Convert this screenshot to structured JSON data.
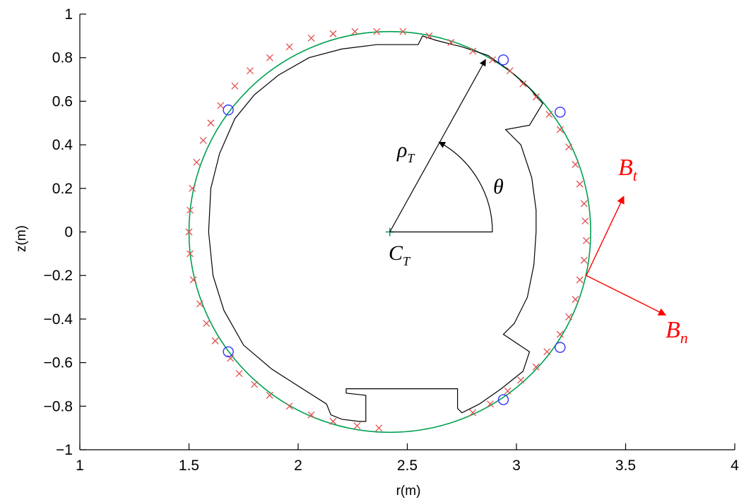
{
  "chart_data": {
    "type": "line",
    "xlabel": "r(m)",
    "ylabel": "z(m)",
    "xlim": [
      1,
      4
    ],
    "ylim": [
      -1,
      1
    ],
    "x_ticks": [
      "1",
      "1.5",
      "2",
      "2.5",
      "3",
      "3.5",
      "4"
    ],
    "y_ticks": [
      "1",
      "0.8",
      "0.6",
      "0.4",
      "0.2",
      "0",
      "−0.2",
      "−0.4",
      "−0.6",
      "−0.8",
      "−1"
    ],
    "grid": false,
    "colors": {
      "boundary": "#00a050",
      "wall": "#000000",
      "probe_cross": "#e05050",
      "sensor_circle": "#3333ff",
      "vector": "#ff0000",
      "annotation_arrow": "#000000"
    },
    "series": [
      {
        "kind": "circle",
        "center": [
          2.42,
          0
        ],
        "radius": 0.92
      },
      {
        "kind": "polyline",
        "points": [
          [
            1.59,
            0
          ],
          [
            1.6,
            0.2
          ],
          [
            1.64,
            0.36
          ],
          [
            1.71,
            0.52
          ],
          [
            1.8,
            0.63
          ],
          [
            1.91,
            0.72
          ],
          [
            2.05,
            0.8
          ],
          [
            2.2,
            0.84
          ],
          [
            2.36,
            0.86
          ],
          [
            2.5,
            0.86
          ],
          [
            2.55,
            0.86
          ],
          [
            2.57,
            0.9
          ],
          [
            2.63,
            0.88
          ],
          [
            2.75,
            0.85
          ],
          [
            2.87,
            0.81
          ],
          [
            2.97,
            0.74
          ],
          [
            3.06,
            0.66
          ],
          [
            3.12,
            0.59
          ],
          [
            3.06,
            0.49
          ],
          [
            2.95,
            0.47
          ],
          [
            3.02,
            0.4
          ],
          [
            3.07,
            0.25
          ],
          [
            3.09,
            0.1
          ],
          [
            3.09,
            0
          ],
          [
            3.08,
            -0.15
          ],
          [
            3.05,
            -0.3
          ],
          [
            2.99,
            -0.42
          ],
          [
            2.94,
            -0.47
          ],
          [
            3.06,
            -0.55
          ],
          [
            3.03,
            -0.64
          ],
          [
            2.93,
            -0.72
          ],
          [
            2.83,
            -0.79
          ],
          [
            2.75,
            -0.83
          ],
          [
            2.73,
            -0.81
          ],
          [
            2.73,
            -0.72
          ],
          [
            2.5,
            -0.72
          ],
          [
            2.22,
            -0.72
          ],
          [
            2.22,
            -0.74
          ],
          [
            2.31,
            -0.75
          ],
          [
            2.31,
            -0.87
          ],
          [
            2.28,
            -0.87
          ],
          [
            2.2,
            -0.86
          ],
          [
            2.15,
            -0.84
          ],
          [
            2.13,
            -0.79
          ],
          [
            2.02,
            -0.72
          ],
          [
            1.88,
            -0.63
          ],
          [
            1.75,
            -0.52
          ],
          [
            1.66,
            -0.36
          ],
          [
            1.61,
            -0.2
          ],
          [
            1.59,
            0
          ]
        ]
      },
      {
        "kind": "markers-x",
        "points": [
          [
            1.5,
            0
          ],
          [
            1.505,
            0.1
          ],
          [
            1.515,
            0.2
          ],
          [
            1.535,
            0.32
          ],
          [
            1.565,
            0.42
          ],
          [
            1.6,
            0.5
          ],
          [
            1.645,
            0.58
          ],
          [
            1.71,
            0.67
          ],
          [
            1.78,
            0.74
          ],
          [
            1.87,
            0.8
          ],
          [
            1.96,
            0.85
          ],
          [
            2.06,
            0.89
          ],
          [
            2.16,
            0.91
          ],
          [
            2.26,
            0.92
          ],
          [
            2.36,
            0.92
          ],
          [
            2.48,
            0.92
          ],
          [
            2.6,
            0.9
          ],
          [
            2.7,
            0.87
          ],
          [
            2.8,
            0.83
          ],
          [
            2.89,
            0.79
          ],
          [
            2.97,
            0.74
          ],
          [
            3.03,
            0.68
          ],
          [
            3.09,
            0.62
          ],
          [
            3.15,
            0.54
          ],
          [
            3.2,
            0.47
          ],
          [
            3.24,
            0.39
          ],
          [
            3.27,
            0.31
          ],
          [
            3.29,
            0.22
          ],
          [
            3.31,
            0.13
          ],
          [
            3.315,
            0.05
          ],
          [
            3.32,
            -0.04
          ],
          [
            3.31,
            -0.13
          ],
          [
            3.29,
            -0.22
          ],
          [
            3.27,
            -0.31
          ],
          [
            3.24,
            -0.39
          ],
          [
            3.2,
            -0.47
          ],
          [
            3.14,
            -0.55
          ],
          [
            3.09,
            -0.62
          ],
          [
            3.02,
            -0.68
          ],
          [
            2.96,
            -0.73
          ],
          [
            2.88,
            -0.79
          ],
          [
            2.8,
            -0.83
          ],
          [
            2.27,
            -0.89
          ],
          [
            2.37,
            -0.9
          ],
          [
            2.16,
            -0.87
          ],
          [
            2.06,
            -0.84
          ],
          [
            1.96,
            -0.8
          ],
          [
            1.87,
            -0.75
          ],
          [
            1.8,
            -0.7
          ],
          [
            1.73,
            -0.65
          ],
          [
            1.69,
            -0.58
          ],
          [
            1.62,
            -0.5
          ],
          [
            1.58,
            -0.42
          ],
          [
            1.55,
            -0.33
          ],
          [
            1.52,
            -0.22
          ],
          [
            1.505,
            -0.1
          ]
        ]
      },
      {
        "kind": "markers-o",
        "points": [
          [
            1.68,
            0.56
          ],
          [
            2.94,
            0.79
          ],
          [
            3.2,
            0.55
          ],
          [
            3.2,
            -0.53
          ],
          [
            2.94,
            -0.77
          ],
          [
            1.68,
            -0.55
          ]
        ]
      }
    ],
    "annotations": {
      "radius_label": "ρ",
      "radius_subscript": "T",
      "angle_label": "θ",
      "center_label": "C",
      "center_subscript": "T",
      "bt_label": "B",
      "bt_subscript": "t",
      "bn_label": "B",
      "bn_subscript": "n"
    }
  }
}
